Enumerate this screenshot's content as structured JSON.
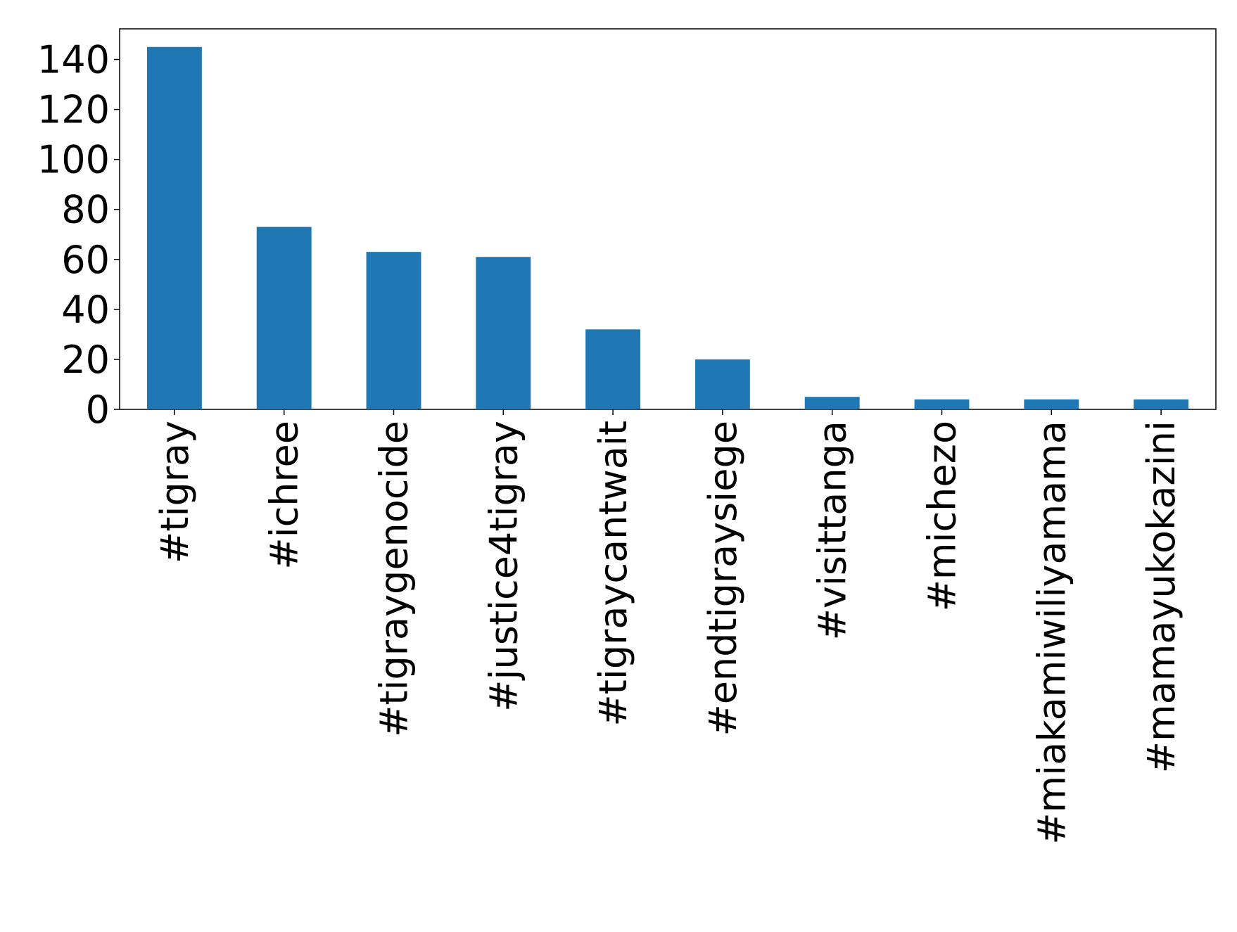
{
  "chart_data": {
    "type": "bar",
    "categories": [
      "#tigray",
      "#ichree",
      "#tigraygenocide",
      "#justice4tigray",
      "#tigraycantwait",
      "#endtigraysiege",
      "#visittanga",
      "#michezo",
      "#miakamiwiliyamama",
      "#mamayukokazini"
    ],
    "values": [
      145,
      73,
      63,
      61,
      32,
      20,
      5,
      4,
      4,
      4
    ],
    "color": "#1f77b4",
    "ylim": [
      0,
      152.25
    ],
    "yticks": [
      0,
      20,
      40,
      60,
      80,
      100,
      120,
      140
    ],
    "grid": false
  }
}
